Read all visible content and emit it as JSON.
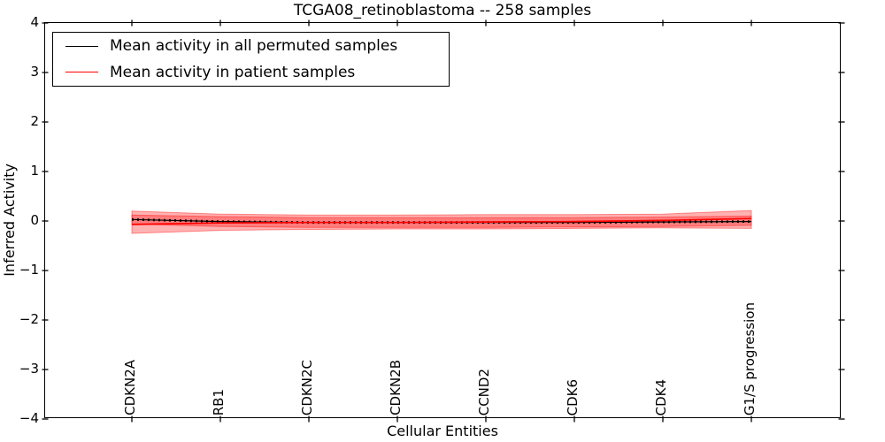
{
  "chart_data": {
    "type": "line",
    "title": "TCGA08_retinoblastoma -- 258 samples",
    "xlabel": "Cellular Entities",
    "ylabel": "Inferred Activity",
    "ylim": [
      -4,
      4
    ],
    "ytick_values": [
      4,
      3,
      2,
      1,
      0,
      -1,
      -2,
      -3,
      -4
    ],
    "ytick_labels": [
      "4",
      "3",
      "2",
      "1",
      "0",
      "−1",
      "−2",
      "−3",
      "−4"
    ],
    "categories": [
      "CDKN2A",
      "RB1",
      "CDKN2C",
      "CDKN2B",
      "CCND2",
      "CDK6",
      "CDK4",
      "G1/S progression"
    ],
    "series": [
      {
        "name": "Mean activity in all permuted samples",
        "color": "#000000",
        "style": "line-with-dot-markers",
        "values": [
          0.03,
          -0.01,
          -0.03,
          -0.03,
          -0.03,
          -0.03,
          -0.02,
          -0.01
        ]
      },
      {
        "name": "Mean activity in patient samples",
        "color": "#ff0000",
        "style": "solid",
        "values": [
          -0.07,
          -0.04,
          -0.03,
          -0.03,
          -0.02,
          -0.01,
          0.01,
          0.05
        ]
      }
    ],
    "bands": [
      {
        "name": "patient-samples-spread",
        "fill": "rgba(255,0,0,0.30)",
        "edge": "rgba(255,0,0,0.40)",
        "upper": [
          0.2,
          0.14,
          0.12,
          0.12,
          0.13,
          0.13,
          0.14,
          0.21
        ],
        "lower": [
          -0.25,
          -0.19,
          -0.17,
          -0.16,
          -0.16,
          -0.15,
          -0.14,
          -0.15
        ]
      },
      {
        "name": "permuted-samples-spread",
        "fill": "rgba(255,0,0,0.30)",
        "edge": "rgba(255,0,0,0.40)",
        "upper": [
          0.12,
          0.09,
          0.07,
          0.07,
          0.07,
          0.07,
          0.08,
          0.1
        ],
        "lower": [
          -0.06,
          -0.11,
          -0.13,
          -0.13,
          -0.13,
          -0.12,
          -0.11,
          -0.09
        ]
      }
    ],
    "legend": {
      "position": "upper left",
      "items": [
        {
          "label": "Mean activity in all permuted samples",
          "color": "#000000"
        },
        {
          "label": "Mean activity in patient samples",
          "color": "#ff0000"
        }
      ]
    },
    "grid": false,
    "axis_color": "#000000"
  }
}
